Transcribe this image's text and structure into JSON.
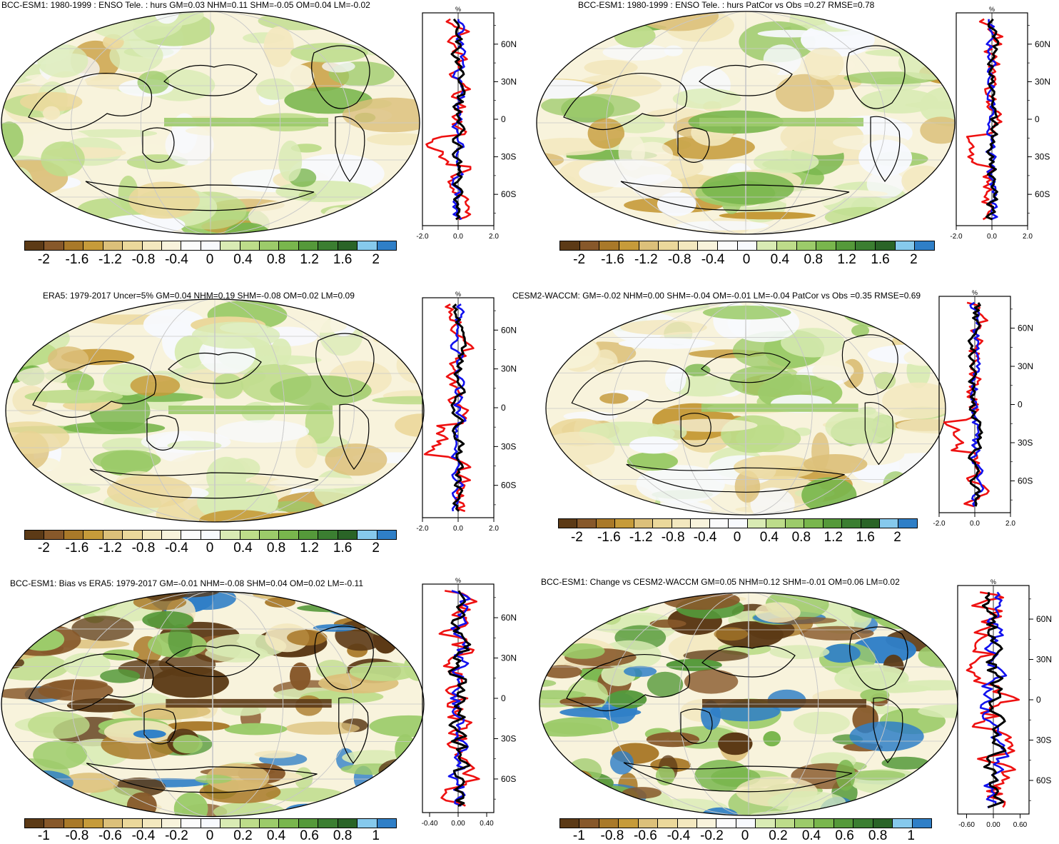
{
  "palette_colors": [
    "#5c3a16",
    "#87582a",
    "#a97929",
    "#c69b3a",
    "#dcc07a",
    "#ebd89b",
    "#f3e8bf",
    "#f8f3dc",
    "#fbfbfb",
    "#f7f9fd",
    "#d9ebb4",
    "#bddc8a",
    "#9ccb6a",
    "#79b64d",
    "#55993a",
    "#3b7e31",
    "#2a6427",
    "#86c9ec",
    "#2f7fc7"
  ],
  "legend_ticks_main": [
    "-2",
    "-1.6",
    "-1.2",
    "-0.8",
    "-0.4",
    "0",
    "0.4",
    "0.8",
    "1.2",
    "1.6",
    "2"
  ],
  "legend_ticks_bias": [
    "-1",
    "-0.8",
    "-0.6",
    "-0.4",
    "-0.2",
    "0",
    "0.2",
    "0.4",
    "0.6",
    "0.8",
    "1"
  ],
  "lat_labels": [
    "60N",
    "30N",
    "0",
    "30S",
    "60S"
  ],
  "profile_unit": "%",
  "profile_colors": {
    "red": "#ee1111",
    "blue": "#1111ee",
    "black": "#000000"
  },
  "panels": [
    {
      "title": "BCC-ESM1: 1980-1999 : ENSO Tele. : hurs GM=0.03 NHM=0.11 SHM=-0.05 OM=0.04 LM=-0.02",
      "xticks": [
        "-2.0",
        "0.0",
        "2.0"
      ],
      "xrange": [
        -2,
        2
      ],
      "legend": "main"
    },
    {
      "title": "BCC-ESM1: 1980-1999 : ENSO Tele. : hurs PatCor vs Obs =0.27 RMSE=0.78",
      "xticks": [
        "-2.0",
        "0.0",
        "2.0"
      ],
      "xrange": [
        -2,
        2
      ],
      "legend": "main"
    },
    {
      "title": "ERA5: 1979-2017 Uncer=5% GM=0.04 NHM=0.19 SHM=-0.08 OM=0.02 LM=0.09",
      "xticks": [
        "-2.0",
        "0.0",
        "2.0"
      ],
      "xrange": [
        -2,
        2
      ],
      "legend": "main"
    },
    {
      "title": "CESM2-WACCM: GM=-0.02 NHM=0.00 SHM=-0.04 OM=-0.01 LM=-0.04 PatCor vs Obs =0.35 RMSE=0.69",
      "xticks": [
        "-2.0",
        "0.0",
        "2.0"
      ],
      "xrange": [
        -2,
        2
      ],
      "legend": "main"
    },
    {
      "title": "BCC-ESM1: Bias vs ERA5: 1979-2017 GM=-0.01 NHM=-0.08 SHM=0.04 OM=0.02 LM=-0.11",
      "xticks": [
        "-0.40",
        "0.00",
        "0.40"
      ],
      "xrange": [
        -0.5,
        0.5
      ],
      "legend": "bias"
    },
    {
      "title": "BCC-ESM1: Change vs CESM2-WACCM GM=0.05 NHM=0.12 SHM=-0.01 OM=0.06 LM=0.02",
      "xticks": [
        "-0.60",
        "0.00",
        "0.60"
      ],
      "xrange": [
        -0.8,
        0.8
      ],
      "legend": "bias"
    }
  ]
}
